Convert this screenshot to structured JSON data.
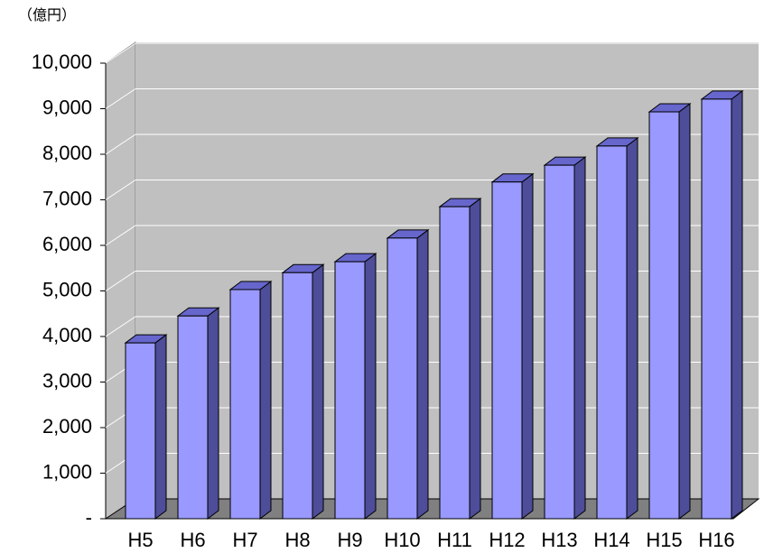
{
  "chart_data": {
    "type": "bar3d",
    "y_label": "（億円）",
    "categories": [
      "H5",
      "H6",
      "H7",
      "H8",
      "H9",
      "H10",
      "H11",
      "H12",
      "H13",
      "H14",
      "H15",
      "H16"
    ],
    "values": [
      3860,
      4450,
      5030,
      5400,
      5640,
      6160,
      6850,
      7390,
      7760,
      8180,
      8930,
      9210
    ],
    "color": "#9999ff",
    "ylim": [
      0,
      10000
    ],
    "yticks": [
      {
        "value": 0,
        "label": "-"
      },
      {
        "value": 1000,
        "label": "1,000"
      },
      {
        "value": 2000,
        "label": "2,000"
      },
      {
        "value": 3000,
        "label": "3,000"
      },
      {
        "value": 4000,
        "label": "4,000"
      },
      {
        "value": 5000,
        "label": "5,000"
      },
      {
        "value": 6000,
        "label": "6,000"
      },
      {
        "value": 7000,
        "label": "7,000"
      },
      {
        "value": 8000,
        "label": "8,000"
      },
      {
        "value": 9000,
        "label": "9,000"
      },
      {
        "value": 10000,
        "label": "10,000"
      }
    ],
    "grid": true
  }
}
